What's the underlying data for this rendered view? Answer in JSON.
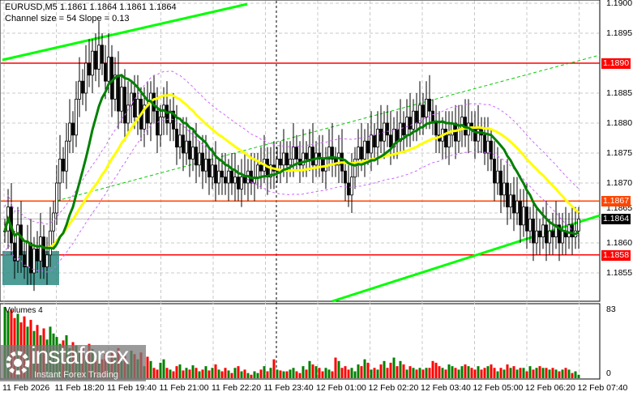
{
  "header": {
    "symbol_line": "EURUSD,M5  1.1861 1.1864 1.1861 1.1864",
    "indicator_line": "Channel size = 54 Slope = 0.13",
    "volumes_label": "Volumes 4"
  },
  "price_axis": {
    "ticks": [
      "1.1900",
      "1.1895",
      "1.1885",
      "1.1880",
      "1.1875",
      "1.1870",
      "1.1865",
      "1.1860",
      "1.1855"
    ],
    "min": 1.185,
    "max": 1.19
  },
  "levels": [
    {
      "label": "1.1890",
      "value": 1.189,
      "color": "#ff0000"
    },
    {
      "label": "1.1867",
      "value": 1.1867,
      "color": "#ff4500"
    },
    {
      "label": "1.1864",
      "value": 1.1864,
      "color": "#000000"
    },
    {
      "label": "1.1858",
      "value": 1.1858,
      "color": "#ff0000"
    }
  ],
  "volume_axis": {
    "max_label": "83",
    "min_label": "0",
    "max": 83
  },
  "time_axis": [
    "11 Feb 2026",
    "11 Feb 18:20",
    "11 Feb 19:40",
    "11 Feb 21:00",
    "11 Feb 22:20",
    "11 Feb 23:40",
    "12 Feb 01:00",
    "12 Feb 02:20",
    "12 Feb 03:40",
    "12 Feb 05:00",
    "12 Feb 06:20",
    "12 Feb 07:40"
  ],
  "colors": {
    "bull_volume": "#008000",
    "bear_volume": "#ff0000",
    "fast_ma": "#008000",
    "slow_ma": "#ffff00",
    "channel": "#00ff00",
    "envelope": "#cc66ff",
    "box": "#2e8b82"
  },
  "logo": {
    "brand": "instaforex",
    "tagline": "Instant Forex Trading"
  },
  "chart_data": {
    "type": "candlestick",
    "timeframe": "M5",
    "closes": [
      1.1862,
      1.1866,
      1.186,
      1.1857,
      1.1863,
      1.1858,
      1.1856,
      1.186,
      1.1855,
      1.1859,
      1.1857,
      1.1861,
      1.1856,
      1.1858,
      1.1862,
      1.1865,
      1.187,
      1.1874,
      1.1872,
      1.1877,
      1.188,
      1.1878,
      1.1884,
      1.1887,
      1.1885,
      1.189,
      1.1888,
      1.1892,
      1.1889,
      1.1893,
      1.189,
      1.1887,
      1.1891,
      1.1884,
      1.1888,
      1.1882,
      1.1886,
      1.188,
      1.1883,
      1.1885,
      1.1881,
      1.1884,
      1.1879,
      1.1883,
      1.188,
      1.1885,
      1.1882,
      1.1878,
      1.1881,
      1.1883,
      1.188,
      1.1882,
      1.1879,
      1.1876,
      1.1878,
      1.1875,
      1.1877,
      1.1874,
      1.1876,
      1.1873,
      1.1875,
      1.1872,
      1.1874,
      1.1871,
      1.1873,
      1.187,
      1.1872,
      1.1871,
      1.187,
      1.1872,
      1.187,
      1.1871,
      1.1869,
      1.1871,
      1.187,
      1.1872,
      1.187,
      1.1871,
      1.1873,
      1.1872,
      1.1874,
      1.1871,
      1.1873,
      1.1872,
      1.1874,
      1.1873,
      1.1875,
      1.1873,
      1.1874,
      1.1876,
      1.1874,
      1.1873,
      1.1875,
      1.1874,
      1.1876,
      1.1873,
      1.1875,
      1.1874,
      1.1872,
      1.1874,
      1.1876,
      1.1874,
      1.1873,
      1.1875,
      1.1872,
      1.187,
      1.1868,
      1.1871,
      1.1874,
      1.1876,
      1.1874,
      1.1877,
      1.1875,
      1.1878,
      1.1876,
      1.1879,
      1.1877,
      1.188,
      1.1878,
      1.1876,
      1.1879,
      1.1877,
      1.188,
      1.1878,
      1.1881,
      1.1879,
      1.1882,
      1.188,
      1.1883,
      1.1881,
      1.1884,
      1.1882,
      1.188,
      1.1878,
      1.1877,
      1.1879,
      1.1876,
      1.1878,
      1.188,
      1.1877,
      1.1879,
      1.1881,
      1.1878,
      1.188,
      1.1879,
      1.1877,
      1.1879,
      1.1878,
      1.1875,
      1.1877,
      1.1874,
      1.187,
      1.1872,
      1.1868,
      1.187,
      1.1866,
      1.1868,
      1.1865,
      1.1867,
      1.1863,
      1.1866,
      1.1862,
      1.1864,
      1.186,
      1.1862,
      1.1861,
      1.1863,
      1.186,
      1.1862,
      1.1861,
      1.1863,
      1.186,
      1.1862,
      1.1861,
      1.1863,
      1.1861,
      1.1862,
      1.1864
    ],
    "volumes": [
      83,
      78,
      80,
      70,
      75,
      65,
      72,
      60,
      68,
      55,
      62,
      50,
      58,
      45,
      60,
      52,
      48,
      40,
      44,
      50,
      35,
      42,
      38,
      30,
      36,
      28,
      40,
      34,
      25,
      30,
      22,
      28,
      18,
      30,
      24,
      35,
      20,
      26,
      16,
      32,
      28,
      22,
      30,
      14,
      25,
      20,
      12,
      10,
      18,
      22,
      12,
      10,
      8,
      14,
      16,
      9,
      12,
      10,
      15,
      12,
      8,
      10,
      14,
      9,
      12,
      16,
      10,
      8,
      12,
      9,
      6,
      12,
      14,
      8,
      10,
      6,
      4,
      8,
      6,
      10,
      14,
      8,
      12,
      22,
      10,
      9,
      8,
      8,
      10,
      12,
      8,
      6,
      14,
      10,
      20,
      16,
      14,
      12,
      8,
      12,
      10,
      8,
      24,
      20,
      12,
      14,
      10,
      12,
      8,
      16,
      14,
      22,
      18,
      10,
      12,
      10,
      16,
      20,
      12,
      18,
      24,
      14,
      20,
      16,
      10,
      14,
      12,
      10,
      12,
      10,
      12,
      12,
      20,
      18,
      14,
      12,
      10,
      16,
      14,
      12,
      10,
      14,
      16,
      14,
      12,
      10,
      14,
      10,
      12,
      14,
      16,
      12,
      8,
      12,
      10,
      16,
      12,
      14,
      10,
      12,
      12,
      8,
      14,
      10,
      12,
      14,
      12,
      12,
      10,
      12,
      10,
      8,
      10,
      12,
      10,
      6,
      8,
      4
    ]
  }
}
